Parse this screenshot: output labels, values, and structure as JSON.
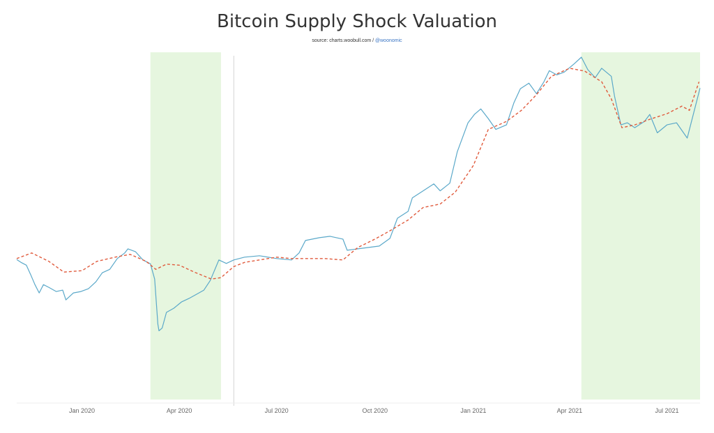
{
  "chart_data": {
    "type": "line",
    "title": "Bitcoin Supply Shock Valuation",
    "source_prefix": "source: charts.woobull.com / ",
    "source_handle": "@woonomic",
    "x_ticks": [
      "Jan 2020",
      "Apr 2020",
      "Jul 2020",
      "Oct 2020",
      "Jan 2021",
      "Apr 2021",
      "Jul 2021"
    ],
    "x_tick_dates": [
      "2020-01-01",
      "2020-04-01",
      "2020-07-01",
      "2020-10-01",
      "2021-01-01",
      "2021-04-01",
      "2021-07-01"
    ],
    "xlim": [
      "2019-11-01",
      "2021-08-01"
    ],
    "ylim": [
      0,
      100
    ],
    "y_axis_labels": false,
    "grid": false,
    "colors": {
      "price": "#5aa8c9",
      "valuation": "#e05a3c",
      "shade": "#e6f6df"
    },
    "shaded_regions": [
      [
        "2020-03-05",
        "2020-05-10"
      ],
      [
        "2021-04-12",
        "2021-08-01"
      ]
    ],
    "vertical_marker": "2020-05-22",
    "series": [
      {
        "style": "solid",
        "points": [
          [
            "2019-11-01",
            40.3
          ],
          [
            "2019-11-05",
            39.5
          ],
          [
            "2019-11-10",
            38.7
          ],
          [
            "2019-11-14",
            36.0
          ],
          [
            "2019-11-18",
            33.1
          ],
          [
            "2019-11-22",
            30.7
          ],
          [
            "2019-11-26",
            33.1
          ],
          [
            "2019-12-01",
            32.3
          ],
          [
            "2019-12-08",
            31.1
          ],
          [
            "2019-12-14",
            31.5
          ],
          [
            "2019-12-17",
            28.7
          ],
          [
            "2019-12-24",
            30.7
          ],
          [
            "2019-12-31",
            31.1
          ],
          [
            "2020-01-07",
            31.9
          ],
          [
            "2020-01-14",
            33.9
          ],
          [
            "2020-01-20",
            36.5
          ],
          [
            "2020-01-27",
            37.5
          ],
          [
            "2020-02-03",
            40.6
          ],
          [
            "2020-02-10",
            42.2
          ],
          [
            "2020-02-13",
            43.4
          ],
          [
            "2020-02-20",
            42.6
          ],
          [
            "2020-02-27",
            40.2
          ],
          [
            "2020-03-05",
            39.1
          ],
          [
            "2020-03-09",
            34.7
          ],
          [
            "2020-03-12",
            21.7
          ],
          [
            "2020-03-13",
            19.8
          ],
          [
            "2020-03-16",
            20.6
          ],
          [
            "2020-03-20",
            25.1
          ],
          [
            "2020-03-27",
            26.3
          ],
          [
            "2020-04-03",
            28.1
          ],
          [
            "2020-04-10",
            29.1
          ],
          [
            "2020-04-17",
            30.3
          ],
          [
            "2020-04-24",
            31.5
          ],
          [
            "2020-04-30",
            34.3
          ],
          [
            "2020-05-03",
            36.5
          ],
          [
            "2020-05-08",
            40.2
          ],
          [
            "2020-05-15",
            39.2
          ],
          [
            "2020-05-22",
            40.2
          ],
          [
            "2020-06-01",
            41.0
          ],
          [
            "2020-06-15",
            41.4
          ],
          [
            "2020-07-01",
            40.6
          ],
          [
            "2020-07-15",
            40.2
          ],
          [
            "2020-07-22",
            42.2
          ],
          [
            "2020-07-28",
            45.8
          ],
          [
            "2020-08-10",
            46.6
          ],
          [
            "2020-08-20",
            47.0
          ],
          [
            "2020-09-01",
            46.2
          ],
          [
            "2020-09-05",
            43.0
          ],
          [
            "2020-09-15",
            43.4
          ],
          [
            "2020-09-25",
            43.8
          ],
          [
            "2020-10-05",
            44.2
          ],
          [
            "2020-10-15",
            46.4
          ],
          [
            "2020-10-22",
            52.2
          ],
          [
            "2020-11-01",
            54.2
          ],
          [
            "2020-11-05",
            58.1
          ],
          [
            "2020-11-15",
            60.1
          ],
          [
            "2020-11-25",
            62.1
          ],
          [
            "2020-12-01",
            60.1
          ],
          [
            "2020-12-10",
            62.3
          ],
          [
            "2020-12-17",
            71.4
          ],
          [
            "2020-12-27",
            79.7
          ],
          [
            "2021-01-02",
            82.1
          ],
          [
            "2021-01-08",
            83.7
          ],
          [
            "2021-01-15",
            80.9
          ],
          [
            "2021-01-22",
            77.8
          ],
          [
            "2021-02-01",
            79.1
          ],
          [
            "2021-02-08",
            85.5
          ],
          [
            "2021-02-14",
            89.5
          ],
          [
            "2021-02-22",
            91.1
          ],
          [
            "2021-03-01",
            88.1
          ],
          [
            "2021-03-08",
            91.5
          ],
          [
            "2021-03-13",
            94.7
          ],
          [
            "2021-03-20",
            93.5
          ],
          [
            "2021-03-27",
            94.3
          ],
          [
            "2021-04-05",
            96.6
          ],
          [
            "2021-04-12",
            98.6
          ],
          [
            "2021-04-18",
            95.0
          ],
          [
            "2021-04-25",
            92.7
          ],
          [
            "2021-05-01",
            95.4
          ],
          [
            "2021-05-10",
            93.1
          ],
          [
            "2021-05-13",
            87.4
          ],
          [
            "2021-05-19",
            79.1
          ],
          [
            "2021-05-25",
            79.7
          ],
          [
            "2021-06-01",
            78.3
          ],
          [
            "2021-06-10",
            80.1
          ],
          [
            "2021-06-15",
            82.1
          ],
          [
            "2021-06-22",
            76.8
          ],
          [
            "2021-07-01",
            79.1
          ],
          [
            "2021-07-10",
            79.7
          ],
          [
            "2021-07-20",
            75.3
          ],
          [
            "2021-07-26",
            82.5
          ],
          [
            "2021-08-01",
            89.7
          ]
        ]
      },
      {
        "style": "dashed",
        "points": [
          [
            "2019-11-01",
            40.6
          ],
          [
            "2019-11-15",
            42.2
          ],
          [
            "2019-12-01",
            39.8
          ],
          [
            "2019-12-15",
            36.7
          ],
          [
            "2020-01-01",
            37.1
          ],
          [
            "2020-01-15",
            39.8
          ],
          [
            "2020-02-01",
            41.0
          ],
          [
            "2020-02-15",
            41.8
          ],
          [
            "2020-03-01",
            39.8
          ],
          [
            "2020-03-10",
            37.5
          ],
          [
            "2020-03-20",
            39.0
          ],
          [
            "2020-04-01",
            38.7
          ],
          [
            "2020-04-15",
            36.7
          ],
          [
            "2020-05-01",
            34.7
          ],
          [
            "2020-05-10",
            35.1
          ],
          [
            "2020-05-22",
            38.3
          ],
          [
            "2020-06-01",
            39.5
          ],
          [
            "2020-06-15",
            40.2
          ],
          [
            "2020-07-01",
            41.0
          ],
          [
            "2020-07-15",
            40.6
          ],
          [
            "2020-08-01",
            40.6
          ],
          [
            "2020-08-15",
            40.6
          ],
          [
            "2020-09-01",
            40.2
          ],
          [
            "2020-09-15",
            43.8
          ],
          [
            "2020-10-01",
            46.2
          ],
          [
            "2020-10-15",
            48.6
          ],
          [
            "2020-11-01",
            51.7
          ],
          [
            "2020-11-15",
            55.3
          ],
          [
            "2020-12-01",
            56.3
          ],
          [
            "2020-12-15",
            59.7
          ],
          [
            "2021-01-01",
            67.4
          ],
          [
            "2021-01-15",
            77.8
          ],
          [
            "2021-02-01",
            80.1
          ],
          [
            "2021-02-15",
            83.3
          ],
          [
            "2021-03-01",
            87.8
          ],
          [
            "2021-03-15",
            93.1
          ],
          [
            "2021-04-01",
            95.4
          ],
          [
            "2021-04-15",
            94.6
          ],
          [
            "2021-05-01",
            91.5
          ],
          [
            "2021-05-10",
            86.6
          ],
          [
            "2021-05-20",
            78.3
          ],
          [
            "2021-06-01",
            79.1
          ],
          [
            "2021-06-15",
            80.7
          ],
          [
            "2021-07-01",
            82.3
          ],
          [
            "2021-07-15",
            84.5
          ],
          [
            "2021-07-22",
            83.3
          ],
          [
            "2021-07-31",
            91.5
          ]
        ]
      }
    ]
  }
}
